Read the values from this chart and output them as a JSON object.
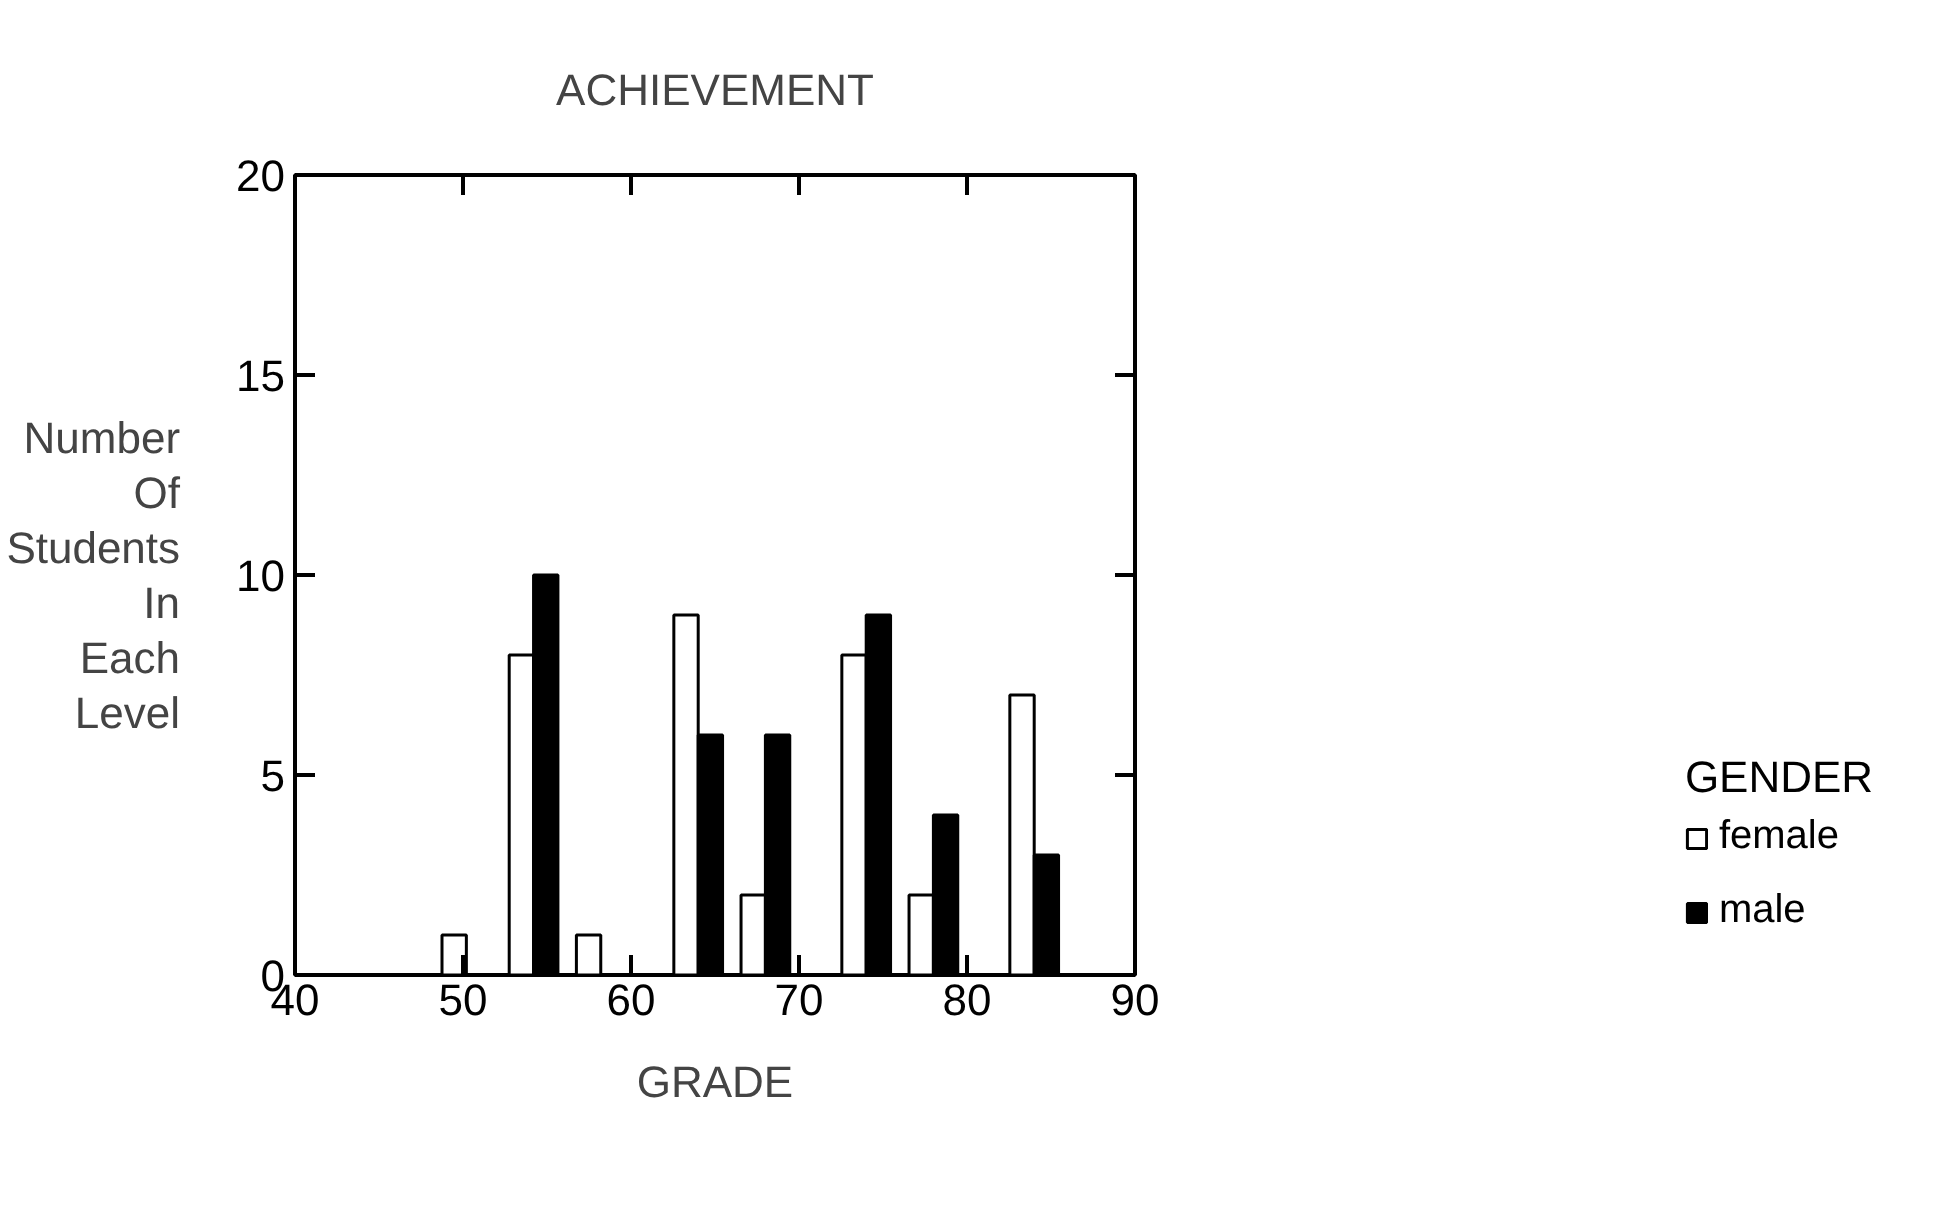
{
  "chart_data": {
    "type": "bar",
    "title": "ACHIEVEMENT",
    "xlabel": "GRADE",
    "ylabel": "Number Of Students In Each Level",
    "legend_title": "GENDER",
    "x": [
      50.2,
      54.2,
      58.2,
      64,
      68,
      74,
      78,
      84
    ],
    "series": [
      {
        "name": "female",
        "color": "#ffffff",
        "values": [
          1,
          8,
          1,
          9,
          2,
          8,
          2,
          7
        ]
      },
      {
        "name": "male",
        "color": "#000000",
        "values": [
          0,
          10,
          0,
          6,
          6,
          9,
          4,
          3
        ]
      }
    ],
    "xlim": [
      40,
      90
    ],
    "xticks": [
      40,
      50,
      60,
      70,
      80,
      90
    ],
    "ylim": [
      0,
      20
    ],
    "yticks": [
      0,
      5,
      10,
      15,
      20
    ],
    "grid": false,
    "legend": "right"
  }
}
